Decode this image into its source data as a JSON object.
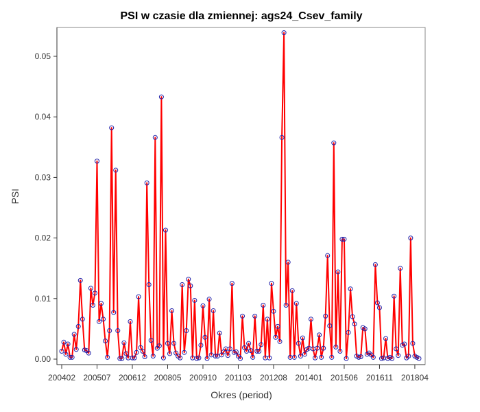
{
  "chart_data": {
    "type": "line",
    "title": "PSI w czasie dla zmiennej: ags24_Csev_family",
    "xlabel": "Okres (period)",
    "ylabel": "PSI",
    "ylim": [
      0,
      0.055
    ],
    "yticks": [
      0.0,
      0.01,
      0.02,
      0.03,
      0.04,
      0.05
    ],
    "ytick_labels": [
      "0.00",
      "0.01",
      "0.02",
      "0.03",
      "0.04",
      "0.05"
    ],
    "xticks": [
      "200402",
      "200507",
      "200612",
      "200805",
      "200910",
      "201103",
      "201208",
      "201401",
      "201506",
      "201611",
      "201804"
    ],
    "x_start": "200402",
    "grid": false,
    "legend": "none",
    "colors": {
      "line": "#ff0000",
      "marker": "#1f1fa8"
    },
    "series": [
      {
        "values": [
          0.0013,
          0.0028,
          0.0008,
          0.0025,
          0.0003,
          0.0003,
          0.0041,
          0.0016,
          0.0054,
          0.013,
          0.0066,
          0.0015,
          0.0014,
          0.001,
          0.0117,
          0.0089,
          0.0109,
          0.0327,
          0.0062,
          0.0092,
          0.0066,
          0.003,
          0.0003,
          0.0047,
          0.0382,
          0.0077,
          0.0312,
          0.0047,
          0.0001,
          0.0001,
          0.0027,
          0.0009,
          0.0002,
          0.0062,
          0.0002,
          0.0002,
          0.0011,
          0.0103,
          0.0019,
          0.0013,
          0.0004,
          0.0291,
          0.0123,
          0.0031,
          0.0005,
          0.0366,
          0.0018,
          0.0022,
          0.0433,
          0.0002,
          0.0213,
          0.0026,
          0.0009,
          0.008,
          0.0026,
          0.001,
          0.0005,
          0.0002,
          0.0123,
          0.0011,
          0.0047,
          0.0132,
          0.0121,
          0.0002,
          0.0097,
          0.0001,
          0.0002,
          0.0023,
          0.0088,
          0.0036,
          0.0001,
          0.0099,
          0.0007,
          0.008,
          0.0005,
          0.0005,
          0.0043,
          0.0007,
          0.0012,
          0.0017,
          0.0006,
          0.0017,
          0.0125,
          0.0011,
          0.0012,
          0.0005,
          0.0001,
          0.0071,
          0.0019,
          0.0013,
          0.0026,
          0.0014,
          0.0003,
          0.0071,
          0.0013,
          0.0013,
          0.0024,
          0.0089,
          0.0002,
          0.0066,
          0.0002,
          0.0125,
          0.0079,
          0.0036,
          0.0054,
          0.0029,
          0.0366,
          0.0539,
          0.0089,
          0.016,
          0.0003,
          0.0113,
          0.0003,
          0.0092,
          0.0026,
          0.0005,
          0.0035,
          0.0008,
          0.0016,
          0.0018,
          0.0066,
          0.0017,
          0.0002,
          0.0018,
          0.004,
          0.0003,
          0.0018,
          0.0071,
          0.0171,
          0.0055,
          0.0003,
          0.0357,
          0.002,
          0.0144,
          0.0013,
          0.0198,
          0.0198,
          0.0001,
          0.0044,
          0.0116,
          0.007,
          0.0058,
          0.0005,
          0.0003,
          0.0004,
          0.0052,
          0.005,
          0.0008,
          0.001,
          0.0007,
          0.0003,
          0.0156,
          0.0093,
          0.0085,
          0.0001,
          0.0002,
          0.0034,
          0.0001,
          0.0003,
          0.0001,
          0.0104,
          0.0017,
          0.0006,
          0.015,
          0.0023,
          0.0025,
          0.0002,
          0.0005,
          0.02,
          0.0026,
          0.0005,
          0.0003,
          0.0001
        ]
      }
    ]
  }
}
